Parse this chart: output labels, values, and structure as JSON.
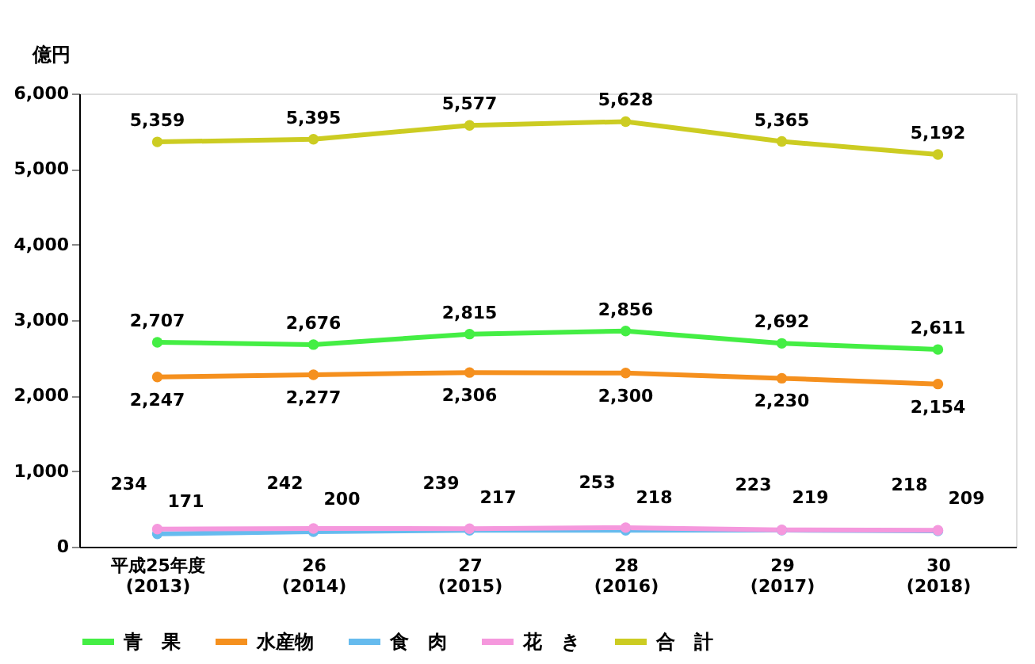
{
  "chart_data": {
    "type": "line",
    "ylabel": "億円",
    "categories": [
      "平成25年度\n(2013)",
      "26\n(2014)",
      "27\n(2015)",
      "28\n(2016)",
      "29\n(2017)",
      "30\n(2018)"
    ],
    "series": [
      {
        "name": "青　果",
        "color": "#44ee44",
        "values": [
          2707,
          2676,
          2815,
          2856,
          2692,
          2611
        ],
        "value_labels": [
          "2,707",
          "2,676",
          "2,815",
          "2,856",
          "2,692",
          "2,611"
        ]
      },
      {
        "name": "水産物",
        "color": "#f5901e",
        "values": [
          2247,
          2277,
          2306,
          2300,
          2230,
          2154
        ],
        "value_labels": [
          "2,247",
          "2,277",
          "2,306",
          "2,300",
          "2,230",
          "2,154"
        ]
      },
      {
        "name": "食　肉",
        "color": "#66bbee",
        "values": [
          171,
          200,
          217,
          218,
          219,
          209
        ],
        "value_labels": [
          "171",
          "200",
          "217",
          "218",
          "219",
          "209"
        ]
      },
      {
        "name": "花　き",
        "color": "#f598dd",
        "values": [
          234,
          242,
          239,
          253,
          223,
          218
        ],
        "value_labels": [
          "234",
          "242",
          "239",
          "253",
          "223",
          "218"
        ]
      },
      {
        "name": "合　計",
        "color": "#cccc22",
        "values": [
          5359,
          5395,
          5577,
          5628,
          5365,
          5192
        ],
        "value_labels": [
          "5,359",
          "5,395",
          "5,577",
          "5,628",
          "5,365",
          "5,192"
        ]
      }
    ],
    "ylim": [
      0,
      6000
    ],
    "yticks": [
      0,
      {
        "value": 1000,
        "label": "1,000"
      },
      {
        "value": 2000,
        "label": "2,000"
      },
      {
        "value": 3000,
        "label": "3,000"
      },
      {
        "value": 4000,
        "label": "4,000"
      },
      {
        "value": 5000,
        "label": "5,000"
      },
      {
        "value": 6000,
        "label": "6,000"
      }
    ],
    "grid": false,
    "legend": "bottom",
    "marker": "circle",
    "line_style": "solid"
  }
}
